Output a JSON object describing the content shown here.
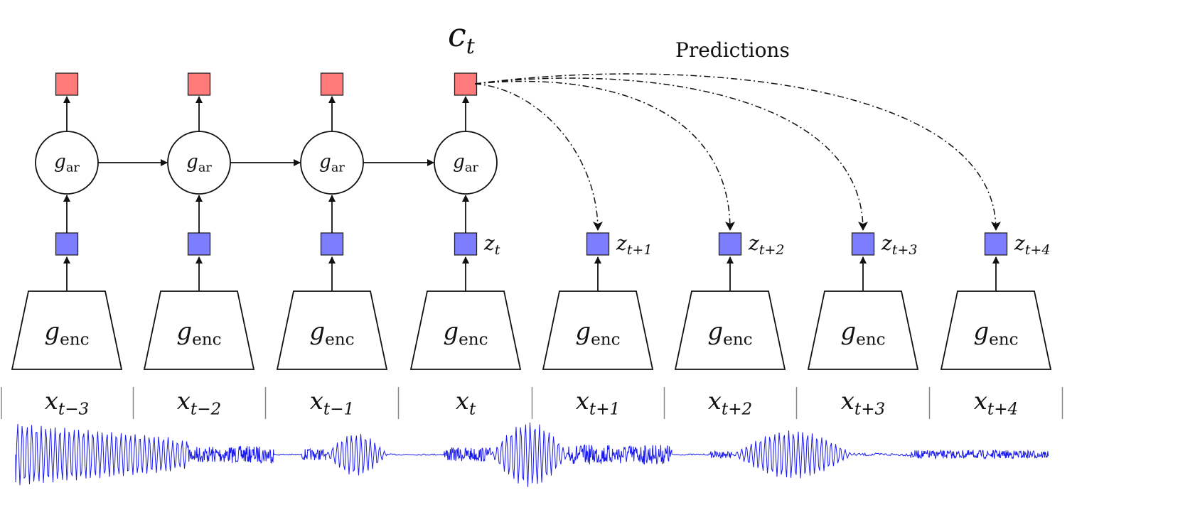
{
  "title": "Predictions",
  "context_label": {
    "base": "c",
    "sub": "t"
  },
  "ar_label": {
    "base": "g",
    "sub": "ar"
  },
  "enc_label": {
    "base": "g",
    "sub": "enc"
  },
  "columns": [
    {
      "x_sub": "t−3",
      "z_sub": ""
    },
    {
      "x_sub": "t−2",
      "z_sub": ""
    },
    {
      "x_sub": "t−1",
      "z_sub": ""
    },
    {
      "x_sub": "t",
      "z_sub": "t"
    },
    {
      "x_sub": "t+1",
      "z_sub": "t+1"
    },
    {
      "x_sub": "t+2",
      "z_sub": "t+2"
    },
    {
      "x_sub": "t+3",
      "z_sub": "t+3"
    },
    {
      "x_sub": "t+4",
      "z_sub": "t+4"
    }
  ],
  "x_base": "x",
  "z_base": "z",
  "colors": {
    "context": "#ff7b7b",
    "latent": "#7d7dff",
    "waveform": "#1a1aee",
    "stroke": "#111111"
  }
}
